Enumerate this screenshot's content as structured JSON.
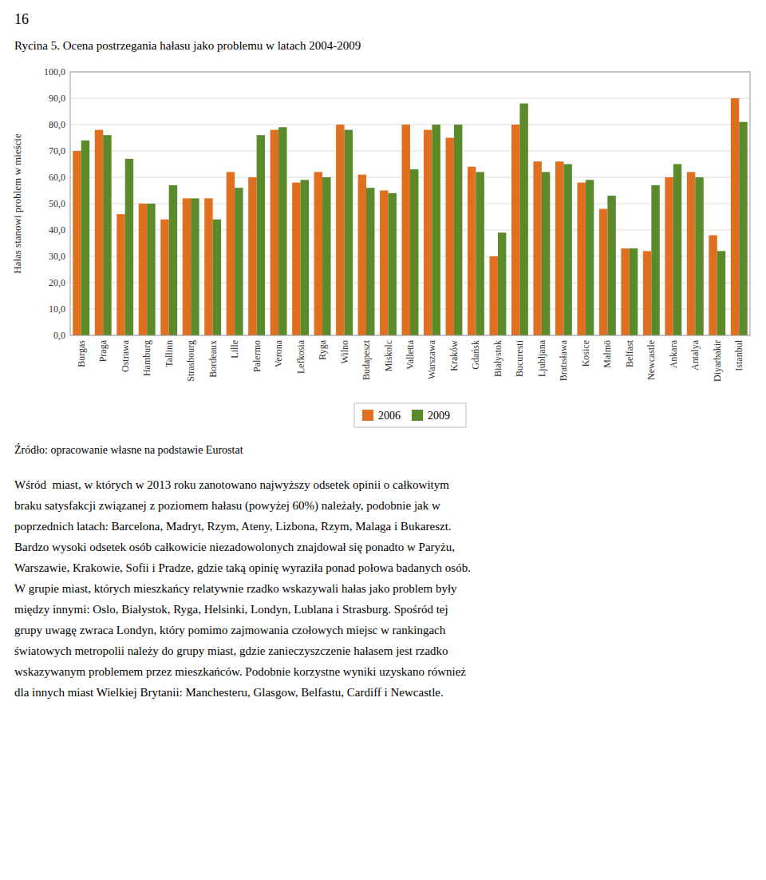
{
  "chart_data": {
    "type": "bar",
    "title": "Rycina 5. Ocena postrzegania hałasu jako problemu w latach 2004-2009",
    "y_label": "Hałas stanowi problem w mieście",
    "annotations": [
      "16",
      "Źródło: opracowanie własne na podstawie Eurostat",
      "Wśród  miast, w których w 2013 roku zanotowano najwyższy odsetek opinii o całkowitym",
      "braku satysfakcji związanej z poziomem hałasu (powyżej 60%) należały, podobnie jak w",
      "poprzednich latach: Barcelona, Madryt, Rzym, Ateny, Lizbona, Rzym, Malaga i Bukareszt.",
      "Bardzo wysoki odsetek osób całkowicie niezadowolonych znajdował się ponadto w Paryżu,",
      "Warszawie, Krakowie, Sofii i Pradze, gdzie taką opinię wyraziła ponad połowa badanych osób.",
      "W grupie miast, których mieszkańcy relatywnie rzadko wskazywali hałas jako problem były",
      "między innymi: Oslo, Białystok, Ryga, Helsinki, Londyn, Lublana i Strasburg. Spośród tej",
      "grupy uwagę zwraca Londyn, który pomimo zajmowania czołowych miejsc w rankingach",
      "światowych metropolii należy do grupy miast, gdzie zanieczyszczenie hałasem jest rzadko",
      "wskazywanym problemem przez mieszkańców. Podobnie korzystne wyniki uzyskano również",
      "dla innych miast Wielkiej Brytanii: Manchesteru, Glasgow, Belfastu, Cardiff i Newcastle."
    ],
    "categories": [
      "Burgas",
      "Praga",
      "Ostrawa",
      "Hamburg",
      "Tallinn",
      "Strasbourg",
      "Bordeaux",
      "Lille",
      "Palermo",
      "Verona",
      "Lefkosia",
      "Ryga",
      "Wilno",
      "Budapeszt",
      "Miskolc",
      "Valletta",
      "Warszawa",
      "Kraków",
      "Gdańsk",
      "Białystok",
      "Bucuresti",
      "Ljubljana",
      "Bratısława",
      "Kosice",
      "Malmö",
      "Belfast",
      "Newcastle",
      "Ankara",
      "Antalya",
      "Diyarbakir",
      "Istanbuł"
    ],
    "series": [
      {
        "name": "2006",
        "color": "#E07020",
        "values": [
          70.0,
          78.0,
          46.0,
          50.0,
          44.0,
          52.0,
          52.0,
          62.0,
          60.0,
          78.0,
          58.0,
          62.0,
          80.0,
          61.0,
          55.0,
          80.0,
          78.0,
          75.0,
          64.0,
          30.0,
          80.0,
          66.0,
          66.0,
          58.0,
          48.0,
          33.0,
          32.0,
          60.0,
          62.0,
          38.0,
          90.0
        ]
      },
      {
        "name": "2009",
        "color": "#5A8A2A",
        "values": [
          74.0,
          76.0,
          67.0,
          50.0,
          57.0,
          52.0,
          44.0,
          56.0,
          76.0,
          79.0,
          59.0,
          60.0,
          78.0,
          56.0,
          54.0,
          63.0,
          80.0,
          80.0,
          62.0,
          39.0,
          88.0,
          62.0,
          65.0,
          59.0,
          53.0,
          33.0,
          57.0,
          65.0,
          60.0,
          32.0,
          81.0
        ]
      }
    ],
    "ylim": [
      0,
      100
    ],
    "yticks": [
      {
        "value": 0,
        "label": "0,0"
      },
      {
        "value": 10,
        "label": "10,0"
      },
      {
        "value": 20,
        "label": "20,0"
      },
      {
        "value": 30,
        "label": "30,0"
      },
      {
        "value": 40,
        "label": "40,0"
      },
      {
        "value": 50,
        "label": "50,0"
      },
      {
        "value": 60,
        "label": "60,0"
      },
      {
        "value": 70,
        "label": "70,0"
      },
      {
        "value": 80,
        "label": "80,0"
      },
      {
        "value": 90,
        "label": "90,0"
      },
      {
        "value": 100,
        "label": "100,0"
      }
    ],
    "grid": true,
    "legend": "bottom"
  }
}
